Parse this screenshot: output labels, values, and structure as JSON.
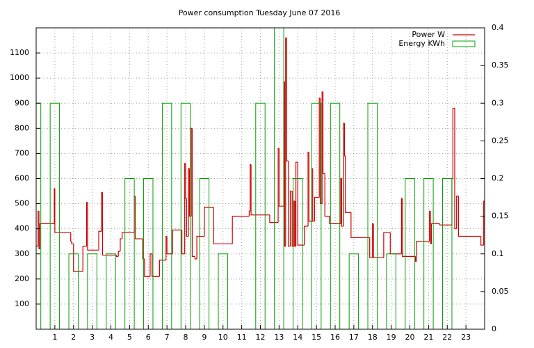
{
  "chart_data": {
    "type": "line",
    "title": "Power consumption Tuesday June 07 2016",
    "xlim": [
      0,
      24
    ],
    "xticks": [
      1,
      2,
      3,
      4,
      5,
      6,
      7,
      8,
      9,
      10,
      11,
      12,
      13,
      14,
      15,
      16,
      17,
      18,
      19,
      20,
      21,
      22,
      23
    ],
    "ylim": [
      0,
      1200
    ],
    "yticks": [
      100,
      200,
      300,
      400,
      500,
      600,
      700,
      800,
      900,
      1000,
      1100
    ],
    "y2lim": [
      0,
      0.4
    ],
    "y2ticks": [
      0,
      0.05,
      0.1,
      0.15,
      0.2,
      0.25,
      0.3,
      0.35,
      0.4
    ],
    "grid": true,
    "legend": "top-right",
    "series": [
      {
        "name": "Power W",
        "color": "#cc0000",
        "x": [
          0,
          0.1,
          0.15,
          0.2,
          0.97,
          1.0,
          1.85,
          1.9,
          2.0,
          2.5,
          2.7,
          2.75,
          3.35,
          3.5,
          3.55,
          4.3,
          4.4,
          4.5,
          4.6,
          5.25,
          5.3,
          5.7,
          5.8,
          6.1,
          6.2,
          6.6,
          6.95,
          7.0,
          7.3,
          7.8,
          7.95,
          8.0,
          8.05,
          8.15,
          8.2,
          8.3,
          8.35,
          8.5,
          8.6,
          9.0,
          9.5,
          10.5,
          11.4,
          11.45,
          11.5,
          12.5,
          12.95,
          13.0,
          13.25,
          13.3,
          13.35,
          13.4,
          13.5,
          13.6,
          13.7,
          13.8,
          13.85,
          13.9,
          14.0,
          14.35,
          14.55,
          14.6,
          14.75,
          14.8,
          14.9,
          15.15,
          15.2,
          15.3,
          15.35,
          15.45,
          15.7,
          16.3,
          16.35,
          16.45,
          16.5,
          16.55,
          16.85,
          17.85,
          18.0,
          18.05,
          18.6,
          18.95,
          19.55,
          19.6,
          20.3,
          20.35,
          21.05,
          21.1,
          21.15,
          21.6,
          22.25,
          22.3,
          22.4,
          22.5,
          22.6,
          23.8,
          23.95
        ],
        "values": [
          330,
          470,
          320,
          420,
          560,
          385,
          350,
          340,
          230,
          330,
          505,
          315,
          390,
          545,
          295,
          290,
          310,
          360,
          385,
          530,
          360,
          280,
          210,
          300,
          210,
          275,
          370,
          300,
          395,
          300,
          660,
          520,
          370,
          640,
          450,
          800,
          290,
          280,
          370,
          485,
          340,
          450,
          470,
          655,
          455,
          425,
          720,
          490,
          985,
          330,
          1160,
          670,
          330,
          550,
          330,
          510,
          330,
          665,
          335,
          410,
          705,
          430,
          640,
          430,
          525,
          920,
          500,
          945,
          620,
          450,
          420,
          600,
          410,
          820,
          690,
          465,
          365,
          285,
          420,
          285,
          385,
          300,
          520,
          290,
          270,
          350,
          470,
          340,
          420,
          415,
          600,
          880,
          400,
          530,
          370,
          335,
          510
        ]
      },
      {
        "name": "Energy KWh",
        "color": "#00a000",
        "axis": "y2",
        "x": [
          0,
          1,
          2,
          3,
          4,
          5,
          6,
          7,
          8,
          9,
          10,
          11,
          12,
          13,
          14,
          15,
          16,
          17,
          18,
          19,
          20,
          21,
          22,
          23
        ],
        "values": [
          0.3,
          0.3,
          0.1,
          0.1,
          0.1,
          0.2,
          0.2,
          0.3,
          0.3,
          0.2,
          0.1,
          0,
          0.3,
          0.4,
          0.2,
          0.3,
          0.3,
          0.1,
          0.3,
          0.1,
          0.2,
          0.2,
          0.2,
          0
        ]
      }
    ]
  }
}
